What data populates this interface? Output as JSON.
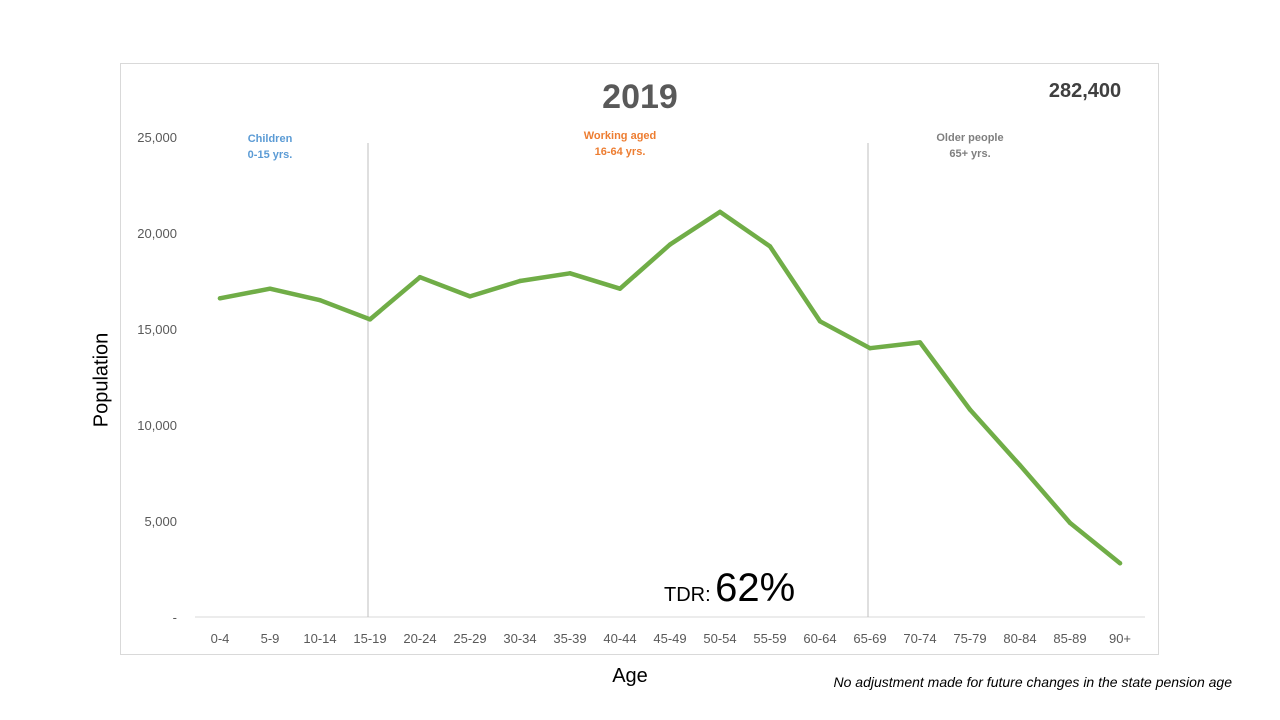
{
  "chart_data": {
    "type": "line",
    "title": "2019",
    "total_label": "282,400",
    "xlabel": "Age",
    "ylabel": "Population",
    "categories": [
      "0-4",
      "5-9",
      "10-14",
      "15-19",
      "20-24",
      "25-29",
      "30-34",
      "35-39",
      "40-44",
      "45-49",
      "50-54",
      "55-59",
      "60-64",
      "65-69",
      "70-74",
      "75-79",
      "80-84",
      "85-89",
      "90+"
    ],
    "series": [
      {
        "values": [
          16600,
          17100,
          16500,
          15500,
          17700,
          16700,
          17500,
          17900,
          17100,
          19400,
          21100,
          19300,
          15400,
          14000,
          14300,
          10800,
          7900,
          4900,
          2800
        ]
      }
    ],
    "ylim": [
      0,
      25000
    ],
    "yticks": [
      {
        "value": 0,
        "label": "-"
      },
      {
        "value": 5000,
        "label": "5,000"
      },
      {
        "value": 10000,
        "label": "10,000"
      },
      {
        "value": 15000,
        "label": "15,000"
      },
      {
        "value": 20000,
        "label": "20,000"
      },
      {
        "value": 25000,
        "label": "25,000"
      }
    ],
    "grid": false,
    "line_color": "#70ad47",
    "dividers_after": [
      "15-19",
      "65-69"
    ],
    "regions": [
      {
        "line1": "Children",
        "line2": "0-15 yrs.",
        "color": "#5b9bd5",
        "center_category": "5-9"
      },
      {
        "line1": "Working aged",
        "line2": "16-64 yrs.",
        "color": "#ed7d31",
        "center_category": "40-44"
      },
      {
        "line1": "Older people",
        "line2": "65+ yrs.",
        "color": "#7f7f7f",
        "center_category": "75-79"
      }
    ]
  },
  "tdr": {
    "label": "TDR:",
    "value": "62%"
  },
  "footnote": "No adjustment made for future changes in the state pension age"
}
